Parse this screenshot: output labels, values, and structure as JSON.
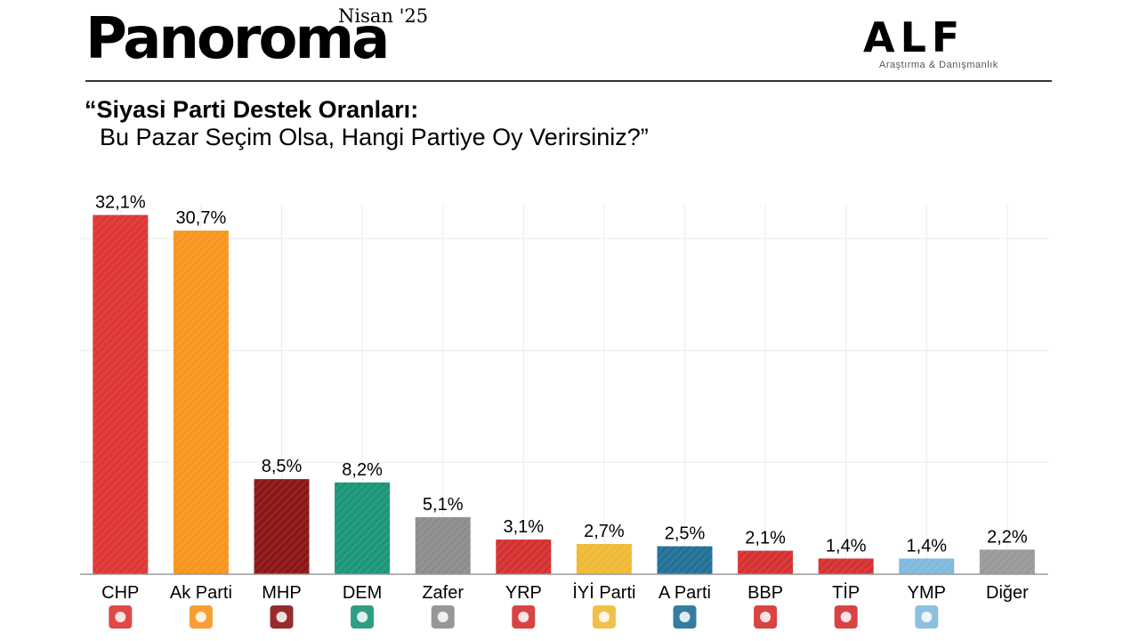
{
  "header": {
    "brand": "Panoroma",
    "edition": "Nisan '25",
    "logo_text": "ALF",
    "logo_sub": "Araştırma & Danışmanlık"
  },
  "question": {
    "line1": "“Siyasi Parti Destek Oranları:",
    "line2": "Bu Pazar Seçim Olsa, Hangi Partiye Oy Verirsiniz?”"
  },
  "chart_data": {
    "type": "bar",
    "title": "“Siyasi Parti Destek Oranları: Bu Pazar Seçim Olsa, Hangi Partiye Oy Verirsiniz?”",
    "categories": [
      "CHP",
      "Ak Parti",
      "MHP",
      "DEM",
      "Zafer",
      "YRP",
      "İYİ Parti",
      "A Parti",
      "BBP",
      "TİP",
      "YMP",
      "Diğer"
    ],
    "values": [
      32.1,
      30.7,
      8.5,
      8.2,
      5.1,
      3.1,
      2.7,
      2.5,
      2.1,
      1.4,
      1.4,
      2.2
    ],
    "value_labels": [
      "32,1%",
      "30,7%",
      "8,5%",
      "8,2%",
      "5,1%",
      "3,1%",
      "2,7%",
      "2,5%",
      "2,1%",
      "1,4%",
      "1,4%",
      "2,2%"
    ],
    "colors": [
      "#de3434",
      "#f7941d",
      "#8b1414",
      "#1a9478",
      "#8c8c8c",
      "#d42f2f",
      "#f0b935",
      "#1f6f94",
      "#d42f2f",
      "#d42f2f",
      "#7fb8dd",
      "#999999"
    ],
    "logo_icons": [
      "chp-logo-icon",
      "akp-logo-icon",
      "mhp-logo-icon",
      "dem-logo-icon",
      "zafer-logo-icon",
      "yrp-logo-icon",
      "iyi-logo-icon",
      "a-parti-logo-icon",
      "bbp-logo-icon",
      "tip-logo-icon",
      "ymp-logo-icon",
      "none"
    ],
    "xlabel": "",
    "ylabel": "",
    "ylim": [
      0,
      35
    ],
    "grid": true,
    "legend": "none"
  }
}
